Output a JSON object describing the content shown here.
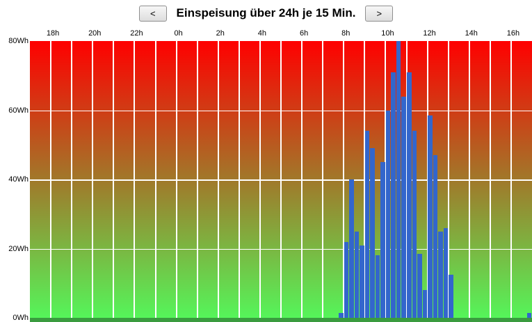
{
  "header": {
    "prev_label": "<",
    "next_label": ">",
    "title": "Einspeisung über 24h je 15 Min."
  },
  "chart_data": {
    "type": "bar",
    "title": "Einspeisung über 24h je 15 Min.",
    "unit": "Wh",
    "x_start_hour": 17,
    "hours_span": 24,
    "slot_minutes": 15,
    "ylim": [
      0,
      80
    ],
    "grid": true,
    "y_ticks": [
      {
        "value": 80,
        "label": "80Wh"
      },
      {
        "value": 60,
        "label": "60Wh"
      },
      {
        "value": 40,
        "label": "40Wh"
      },
      {
        "value": 20,
        "label": "20Wh"
      },
      {
        "value": 0,
        "label": "0Wh"
      }
    ],
    "x_ticks": [
      {
        "hour": 18,
        "label": "18h"
      },
      {
        "hour": 20,
        "label": "20h"
      },
      {
        "hour": 22,
        "label": "22h"
      },
      {
        "hour": 0,
        "label": "0h"
      },
      {
        "hour": 2,
        "label": "2h"
      },
      {
        "hour": 4,
        "label": "4h"
      },
      {
        "hour": 6,
        "label": "6h"
      },
      {
        "hour": 8,
        "label": "8h"
      },
      {
        "hour": 10,
        "label": "10h"
      },
      {
        "hour": 12,
        "label": "12h"
      },
      {
        "hour": 14,
        "label": "14h"
      },
      {
        "hour": 16,
        "label": "16h"
      }
    ],
    "bars": [
      {
        "time": "07:45",
        "value": 1.5
      },
      {
        "time": "08:00",
        "value": 22
      },
      {
        "time": "08:15",
        "value": 40
      },
      {
        "time": "08:30",
        "value": 25
      },
      {
        "time": "08:45",
        "value": 21
      },
      {
        "time": "09:00",
        "value": 54
      },
      {
        "time": "09:15",
        "value": 49
      },
      {
        "time": "09:30",
        "value": 18
      },
      {
        "time": "09:45",
        "value": 45
      },
      {
        "time": "10:00",
        "value": 60
      },
      {
        "time": "10:15",
        "value": 71
      },
      {
        "time": "10:30",
        "value": 80
      },
      {
        "time": "10:45",
        "value": 64
      },
      {
        "time": "11:00",
        "value": 71
      },
      {
        "time": "11:15",
        "value": 54
      },
      {
        "time": "11:30",
        "value": 18.5
      },
      {
        "time": "11:45",
        "value": 8
      },
      {
        "time": "12:00",
        "value": 58.5
      },
      {
        "time": "12:15",
        "value": 47
      },
      {
        "time": "12:30",
        "value": 25
      },
      {
        "time": "12:45",
        "value": 26
      },
      {
        "time": "13:00",
        "value": 12.5
      },
      {
        "time": "16:45",
        "value": 1.5
      }
    ],
    "colors": {
      "bar": "#3366cc",
      "gradient_top": "#ff0000",
      "gradient_mid": "#a1782a",
      "gradient_bottom": "#55f55a",
      "gridline": "#ffffff",
      "baseline_strip": "#3a9b3f"
    }
  }
}
